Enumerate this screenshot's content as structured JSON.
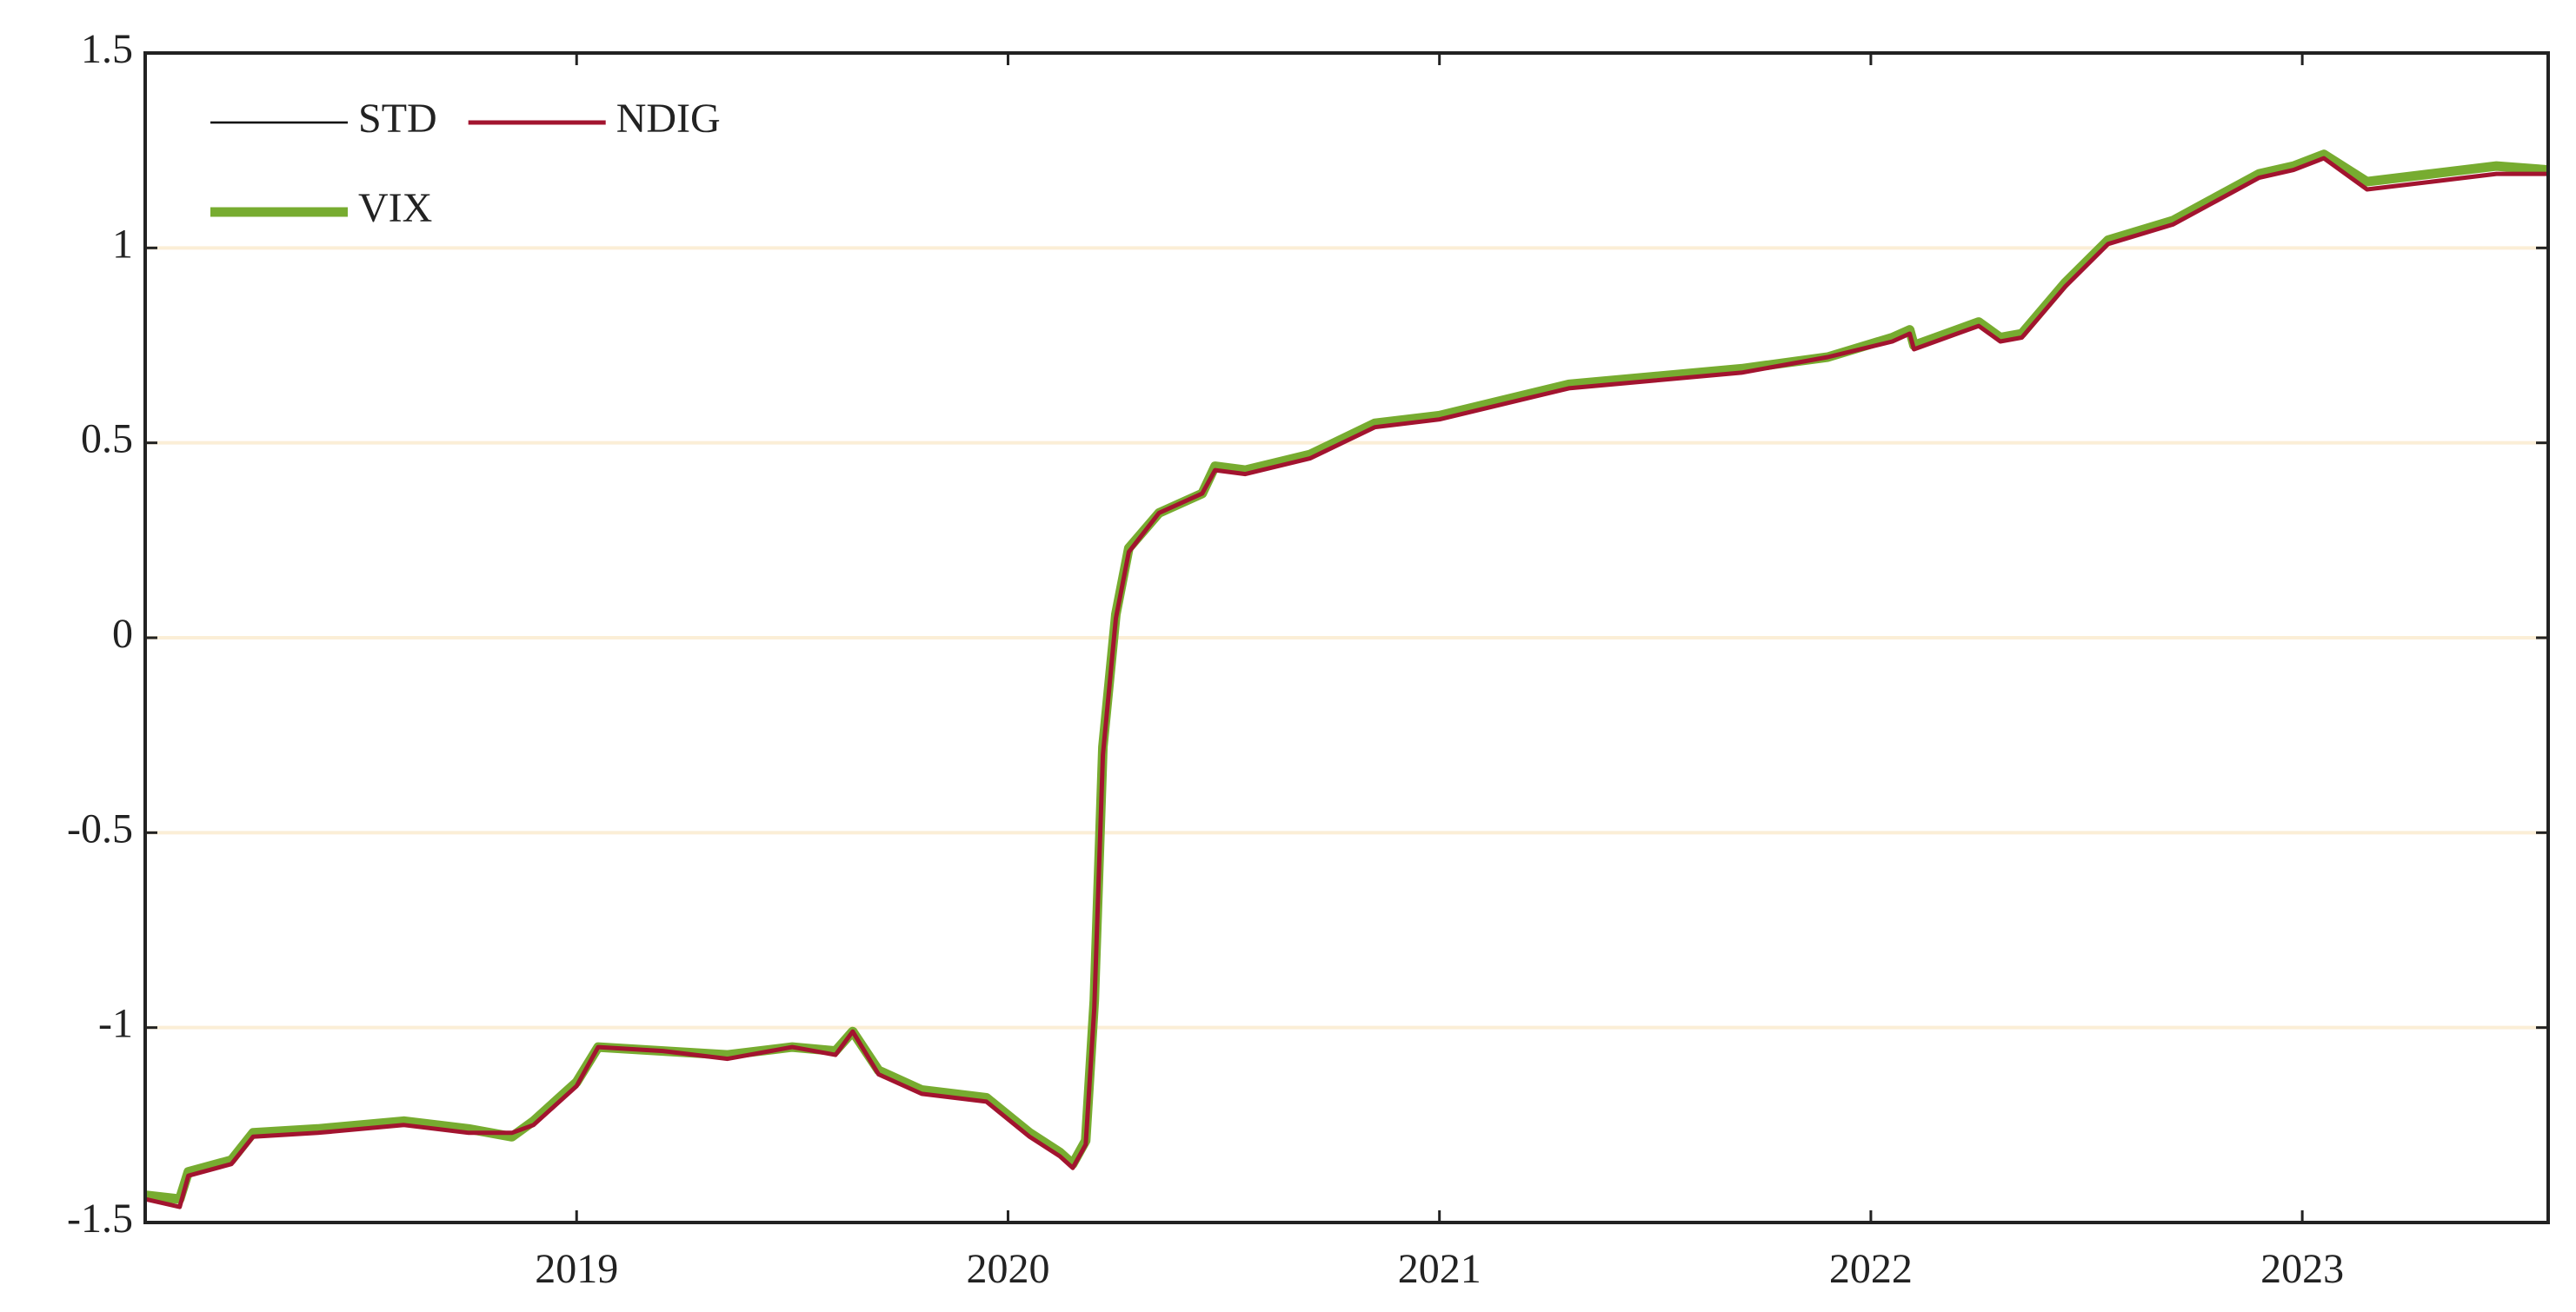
{
  "chart_data": {
    "type": "line",
    "x": [
      2018.0,
      2018.08,
      2018.1,
      2018.2,
      2018.25,
      2018.4,
      2018.6,
      2018.75,
      2018.85,
      2018.9,
      2019.0,
      2019.05,
      2019.2,
      2019.35,
      2019.5,
      2019.6,
      2019.64,
      2019.7,
      2019.8,
      2019.95,
      2020.05,
      2020.12,
      2020.15,
      2020.18,
      2020.2,
      2020.22,
      2020.25,
      2020.28,
      2020.35,
      2020.45,
      2020.48,
      2020.55,
      2020.7,
      2020.85,
      2021.0,
      2021.15,
      2021.3,
      2021.5,
      2021.7,
      2021.9,
      2022.05,
      2022.09,
      2022.1,
      2022.2,
      2022.25,
      2022.3,
      2022.35,
      2022.45,
      2022.55,
      2022.7,
      2022.8,
      2022.9,
      2022.98,
      2023.05,
      2023.15,
      2023.3,
      2023.45,
      2023.57
    ],
    "series": [
      {
        "name": "VIX",
        "color": "#77ac30",
        "width": 11,
        "values": [
          -1.43,
          -1.44,
          -1.37,
          -1.34,
          -1.27,
          -1.26,
          -1.24,
          -1.26,
          -1.28,
          -1.24,
          -1.14,
          -1.05,
          -1.06,
          -1.07,
          -1.05,
          -1.06,
          -1.01,
          -1.11,
          -1.16,
          -1.18,
          -1.27,
          -1.32,
          -1.35,
          -1.29,
          -0.93,
          -0.28,
          0.06,
          0.23,
          0.32,
          0.37,
          0.44,
          0.43,
          0.47,
          0.55,
          0.57,
          0.61,
          0.65,
          0.67,
          0.69,
          0.72,
          0.77,
          0.79,
          0.75,
          0.79,
          0.81,
          0.77,
          0.78,
          0.91,
          1.02,
          1.07,
          1.13,
          1.19,
          1.21,
          1.24,
          1.17,
          1.19,
          1.21,
          1.2
        ]
      },
      {
        "name": "STD",
        "color": "#000000",
        "width": 2.5,
        "values": [
          -1.44,
          -1.46,
          -1.38,
          -1.35,
          -1.28,
          -1.27,
          -1.25,
          -1.27,
          -1.27,
          -1.25,
          -1.15,
          -1.05,
          -1.06,
          -1.08,
          -1.05,
          -1.07,
          -1.01,
          -1.12,
          -1.17,
          -1.19,
          -1.28,
          -1.33,
          -1.36,
          -1.3,
          -0.95,
          -0.3,
          0.05,
          0.22,
          0.32,
          0.37,
          0.43,
          0.42,
          0.46,
          0.54,
          0.56,
          0.6,
          0.64,
          0.66,
          0.68,
          0.72,
          0.76,
          0.78,
          0.74,
          0.78,
          0.8,
          0.76,
          0.77,
          0.9,
          1.01,
          1.06,
          1.12,
          1.18,
          1.2,
          1.23,
          1.15,
          1.17,
          1.19,
          1.19
        ]
      },
      {
        "name": "NDIG",
        "color": "#a2142f",
        "width": 5,
        "values": [
          -1.44,
          -1.46,
          -1.38,
          -1.35,
          -1.28,
          -1.27,
          -1.25,
          -1.27,
          -1.27,
          -1.25,
          -1.15,
          -1.05,
          -1.06,
          -1.08,
          -1.05,
          -1.07,
          -1.01,
          -1.12,
          -1.17,
          -1.19,
          -1.28,
          -1.33,
          -1.36,
          -1.3,
          -0.95,
          -0.3,
          0.05,
          0.22,
          0.32,
          0.37,
          0.43,
          0.42,
          0.46,
          0.54,
          0.56,
          0.6,
          0.64,
          0.66,
          0.68,
          0.72,
          0.76,
          0.78,
          0.74,
          0.78,
          0.8,
          0.76,
          0.77,
          0.9,
          1.01,
          1.06,
          1.12,
          1.18,
          1.2,
          1.23,
          1.15,
          1.17,
          1.19,
          1.19
        ]
      }
    ],
    "xlim": [
      2018.0,
      2023.57
    ],
    "xticks": [
      2019,
      2020,
      2021,
      2022,
      2023
    ],
    "ylim": [
      -1.5,
      1.5
    ],
    "yticks": [
      -1.5,
      -1,
      -0.5,
      0,
      0.5,
      1,
      1.5
    ],
    "grid": true,
    "grid_color": "#fbeed6",
    "legend": "upper left"
  }
}
